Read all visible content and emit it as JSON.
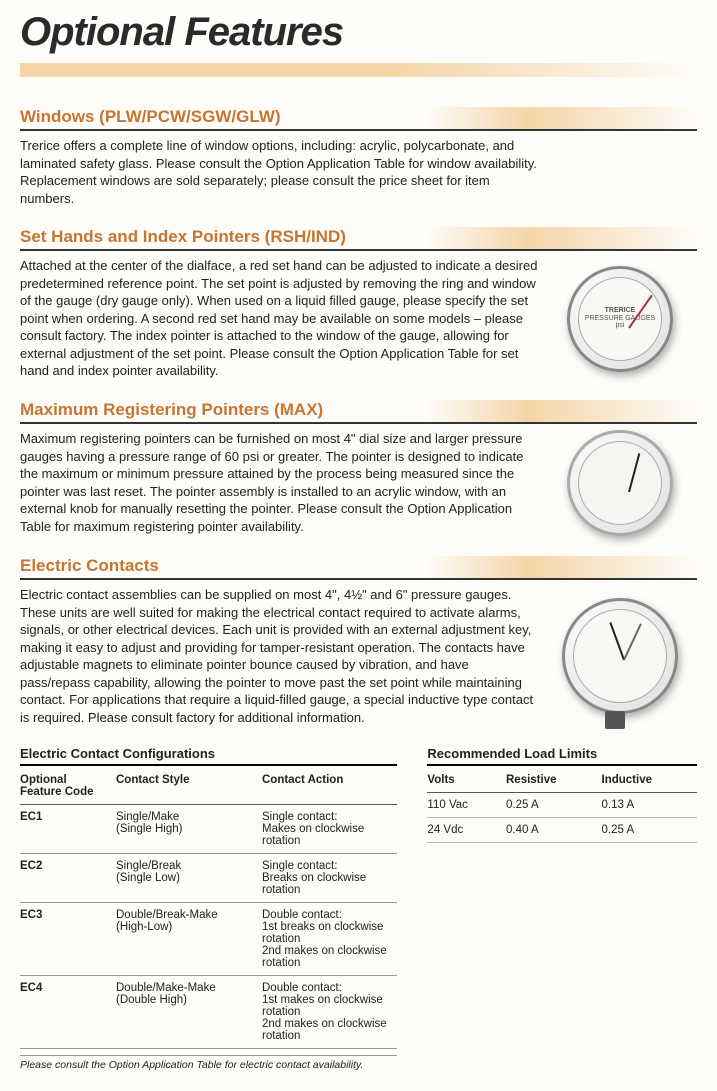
{
  "page": {
    "title": "Optional Features"
  },
  "sections": {
    "windows": {
      "heading": "Windows (PLW/PCW/SGW/GLW)",
      "body": "Trerice offers a complete line of window options, including: acrylic, polycarbonate, and laminated safety glass. Please consult the Option Application Table for window availability. Replacement windows are sold separately; please consult the price sheet for item numbers."
    },
    "sethands": {
      "heading": "Set Hands and Index Pointers (RSH/IND)",
      "body": "Attached at the center of the dialface, a red set hand can be adjusted to indicate a desired predetermined reference point. The set point is adjusted by removing the ring and window of the gauge (dry gauge only). When used on a liquid filled gauge, please specify the set point when ordering. A second red set hand may be available on some models – please consult factory. The index pointer is attached to the window of the gauge, allowing for external adjustment of the set point. Please consult the Option Application Table for set hand and index pointer availability."
    },
    "maxreg": {
      "heading": "Maximum Registering Pointers (MAX)",
      "body": "Maximum registering pointers can be furnished on most 4\" dial size and larger pressure gauges having a pressure range of 60 psi or greater. The pointer is designed to indicate the maximum or minimum pressure attained by the process being measured since the pointer was last reset. The pointer assembly is installed to an acrylic window, with an external knob for manually resetting the pointer. Please consult the Option Application Table for maximum registering pointer availability."
    },
    "electric": {
      "heading": "Electric Contacts",
      "body": "Electric contact assemblies can be supplied on most 4\", 4½\" and 6\" pressure gauges. These units are well suited for making the electrical contact required to activate alarms, signals, or other electrical devices. Each unit is provided with an external adjustment key, making it easy to adjust and providing for tamper-resistant operation. The contacts have adjustable magnets to eliminate pointer bounce caused by vibration, and have pass/repass capability, allowing the pointer to move past the set point while maintaining contact. For applications that require a liquid-filled gauge, a special inductive type contact is required. Please consult factory for additional information."
    }
  },
  "configTable": {
    "title": "Electric Contact Configurations",
    "headers": {
      "code": "Optional Feature Code",
      "style": "Contact Style",
      "action": "Contact Action"
    },
    "rows": [
      {
        "code": "EC1",
        "style": "Single/Make\n(Single High)",
        "action": "Single contact:\nMakes on clockwise rotation"
      },
      {
        "code": "EC2",
        "style": "Single/Break\n(Single Low)",
        "action": "Single contact:\nBreaks on clockwise rotation"
      },
      {
        "code": "EC3",
        "style": "Double/Break-Make\n(High-Low)",
        "action": "Double contact:\n1st breaks on clockwise rotation\n2nd makes on clockwise rotation"
      },
      {
        "code": "EC4",
        "style": "Double/Make-Make\n(Double High)",
        "action": "Double contact:\n1st makes on clockwise rotation\n2nd makes on clockwise rotation"
      }
    ],
    "footnote": "Please consult the Option Application Table for electric contact availability."
  },
  "loadTable": {
    "title": "Recommended Load Limits",
    "headers": {
      "volts": "Volts",
      "resistive": "Resistive",
      "inductive": "Inductive"
    },
    "rows": [
      {
        "volts": "110 Vac",
        "resistive": "0.25 A",
        "inductive": "0.13 A"
      },
      {
        "volts": "24 Vdc",
        "resistive": "0.40 A",
        "inductive": "0.25 A"
      }
    ]
  },
  "gaugeLabels": {
    "brand": "TRERICE",
    "sub": "PRESSURE GAUGES",
    "unit": "psi",
    "ticks": [
      "140",
      "160",
      "180",
      "200"
    ]
  }
}
